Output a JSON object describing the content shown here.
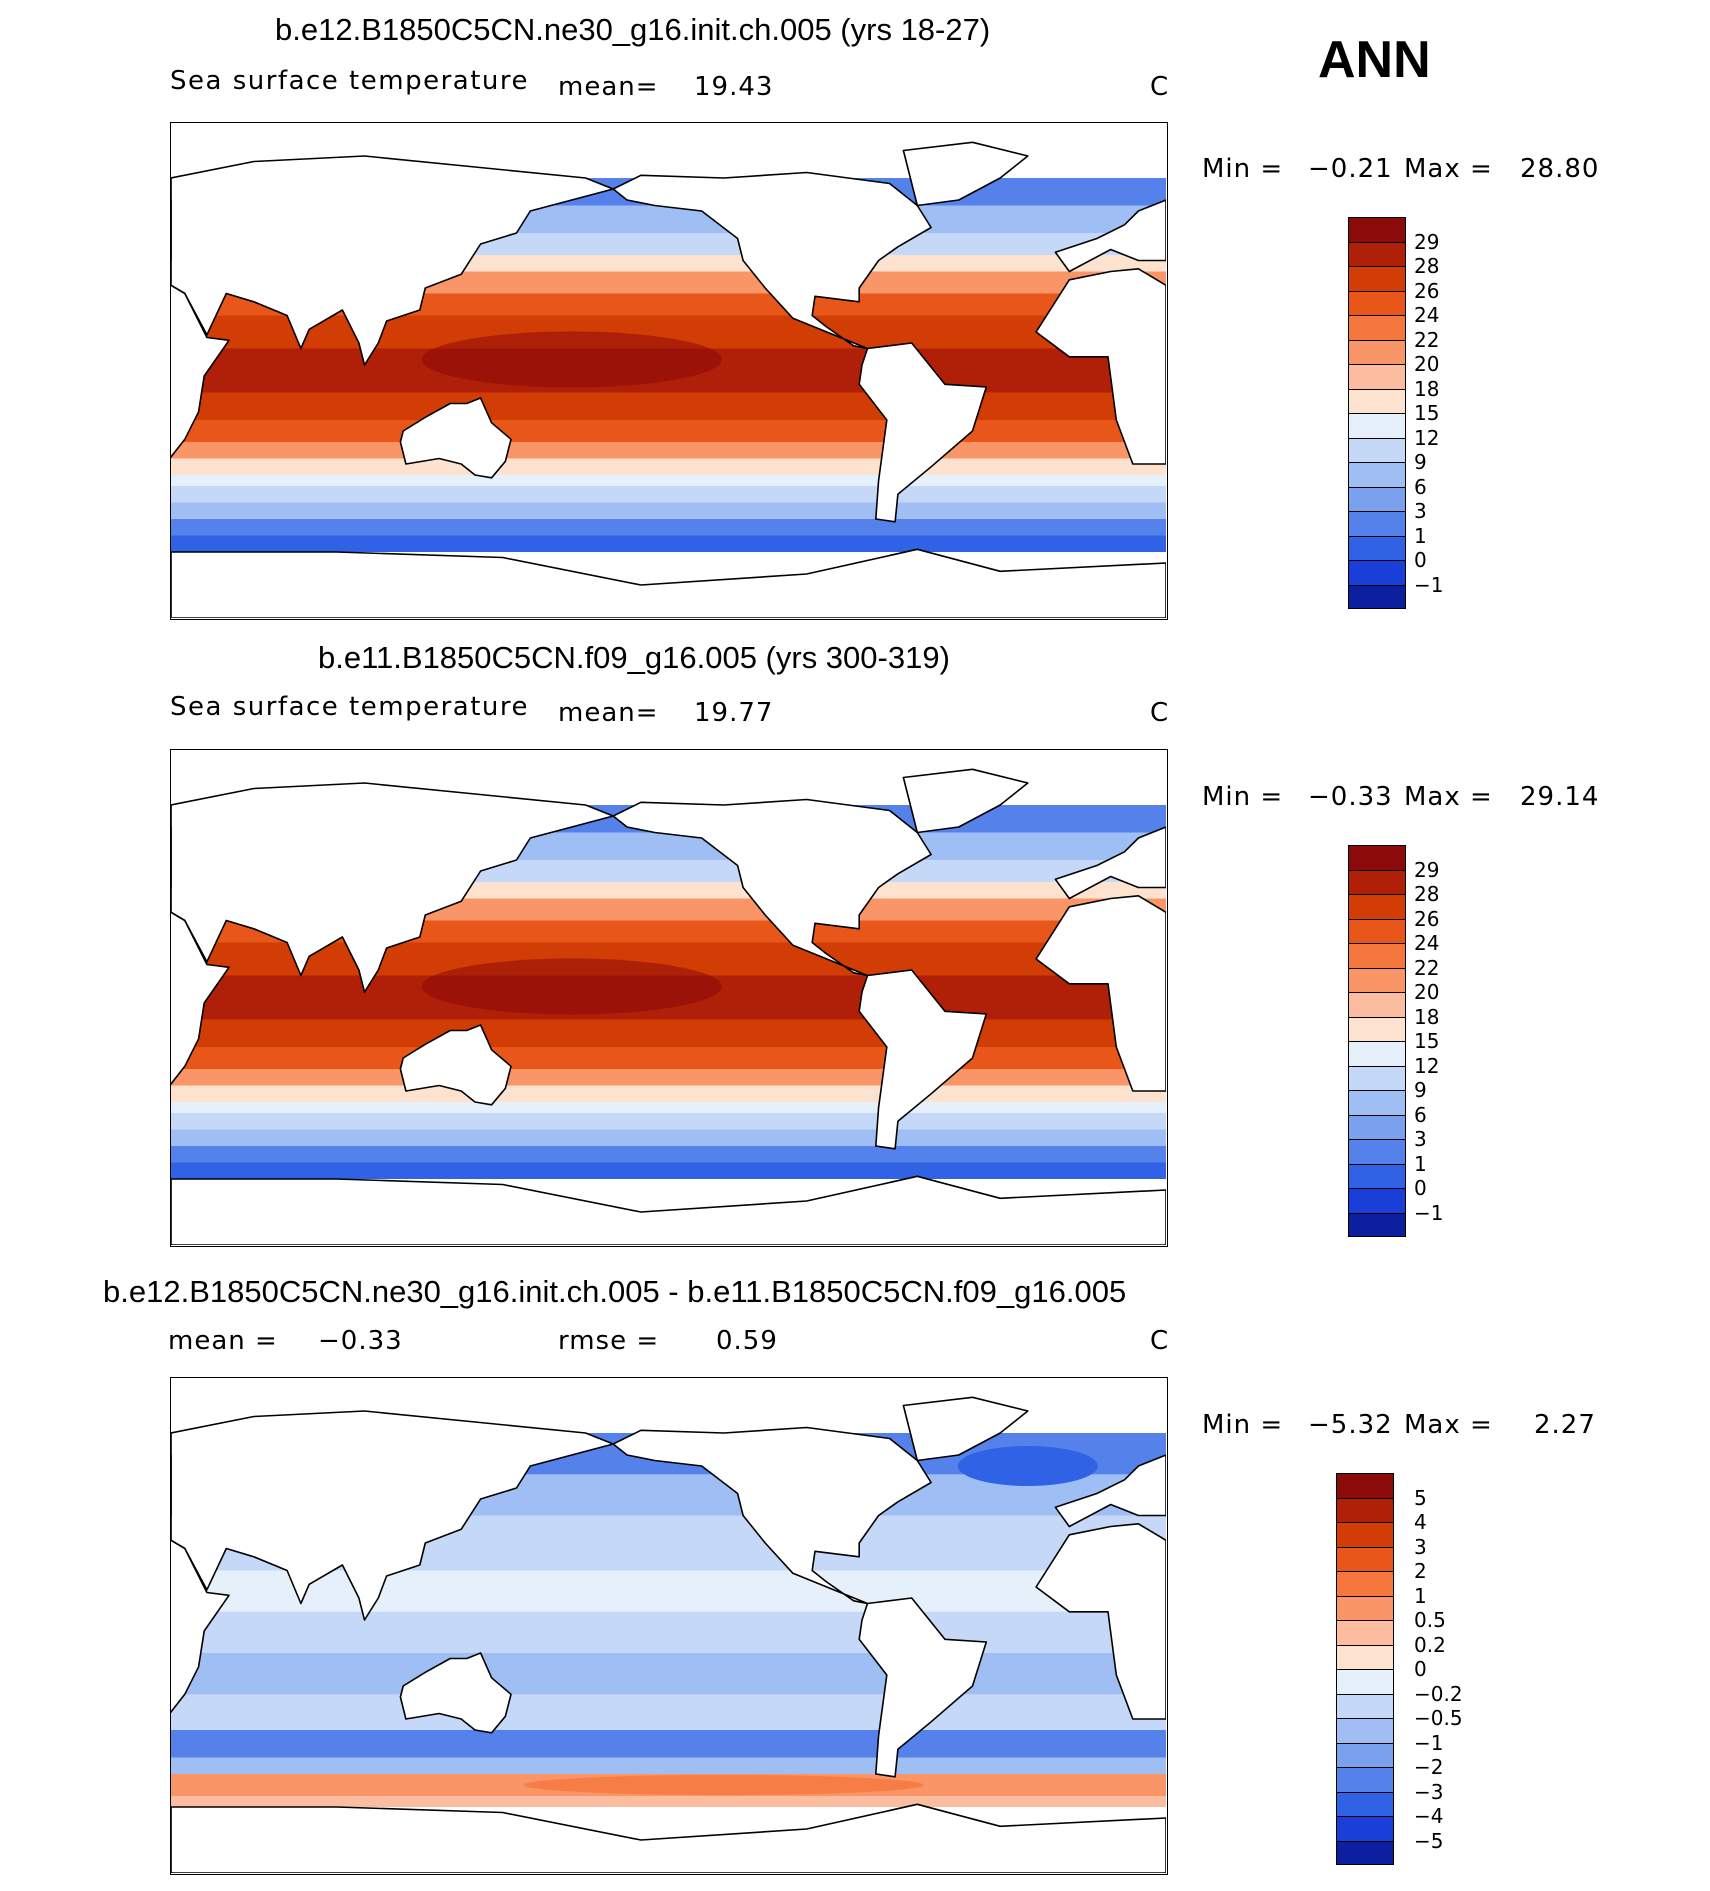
{
  "season": "ANN",
  "panels": [
    {
      "title": "b.e12.B1850C5CN.ne30_g16.init.ch.005 (yrs 18-27)",
      "variable": "Sea surface temperature",
      "stat_label": "mean=",
      "stat_value": "19.43",
      "units": "C",
      "min_label": "Min =",
      "min_value": "−0.21",
      "max_label": "Max =",
      "max_value": "28.80",
      "colorbar_labels": [
        "29",
        "28",
        "26",
        "24",
        "22",
        "20",
        "18",
        "15",
        "12",
        "9",
        "6",
        "3",
        "1",
        "0",
        "−1"
      ]
    },
    {
      "title": "b.e11.B1850C5CN.f09_g16.005 (yrs 300-319)",
      "variable": "Sea surface temperature",
      "stat_label": "mean=",
      "stat_value": "19.77",
      "units": "C",
      "min_label": "Min =",
      "min_value": "−0.33",
      "max_label": "Max =",
      "max_value": "29.14",
      "colorbar_labels": [
        "29",
        "28",
        "26",
        "24",
        "22",
        "20",
        "18",
        "15",
        "12",
        "9",
        "6",
        "3",
        "1",
        "0",
        "−1"
      ]
    },
    {
      "title": "b.e12.B1850C5CN.ne30_g16.init.ch.005 - b.e11.B1850C5CN.f09_g16.005",
      "mean_label": "mean =",
      "mean_value": "−0.33",
      "rmse_label": "rmse =",
      "rmse_value": "0.59",
      "units": "C",
      "min_label": "Min =",
      "min_value": "−5.32",
      "max_label": "Max =",
      "max_value": "2.27",
      "colorbar_labels": [
        "5",
        "4",
        "3",
        "2",
        "1",
        "0.5",
        "0.2",
        "0",
        "−0.2",
        "−0.5",
        "−1",
        "−2",
        "−3",
        "−4",
        "−5"
      ]
    }
  ],
  "palettes": {
    "sst": [
      "#8b0a0a",
      "#b01f07",
      "#d23c05",
      "#e9561a",
      "#f6773d",
      "#fa9568",
      "#fcbca0",
      "#fde3cf",
      "#e6f0fb",
      "#c5d8f7",
      "#9fbef3",
      "#7aa1ee",
      "#5482ea",
      "#2f62e4",
      "#1a3fd8",
      "#0c1f9e"
    ],
    "diff": [
      "#8b0a0a",
      "#b01f07",
      "#d23c05",
      "#e9561a",
      "#f6773d",
      "#fa9568",
      "#fcbca0",
      "#fde3cf",
      "#e6f0fb",
      "#c5d8f7",
      "#9fbef3",
      "#7aa1ee",
      "#5482ea",
      "#2f62e4",
      "#1a3fd8",
      "#0c1f9e"
    ]
  }
}
